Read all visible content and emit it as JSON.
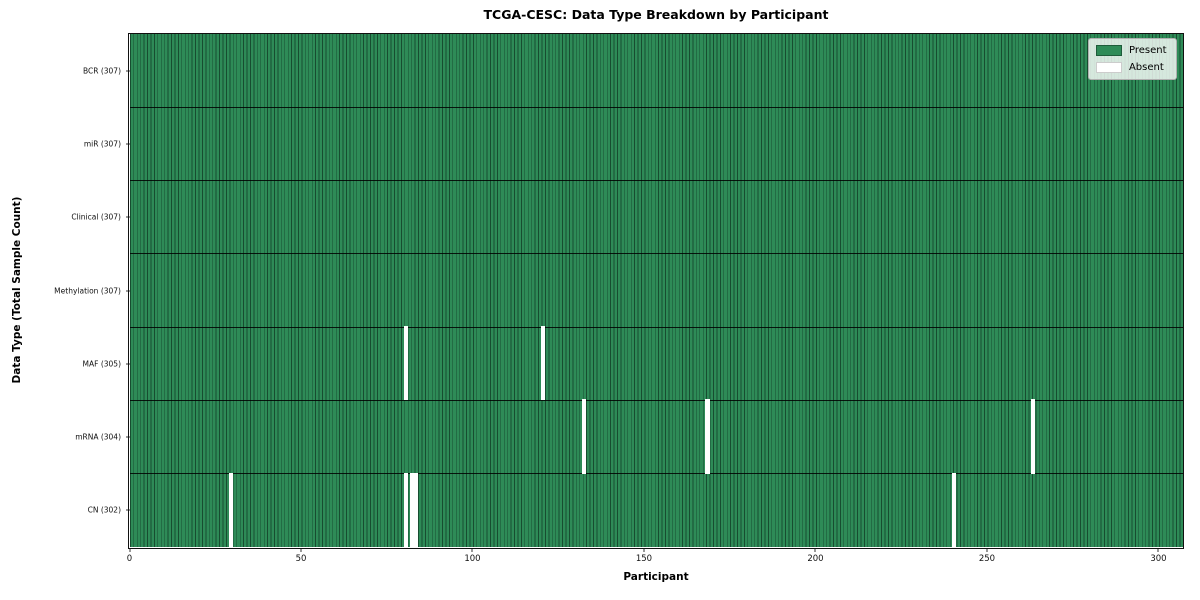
{
  "chart_data": {
    "type": "heatmap",
    "title": "TCGA-CESC: Data Type Breakdown by Participant",
    "xlabel": "Participant",
    "ylabel": "Data Type (Total Sample Count)",
    "n_participants": 307,
    "x_ticks": [
      0,
      50,
      100,
      150,
      200,
      250,
      300
    ],
    "x_range": [
      0,
      307
    ],
    "grid": false,
    "legend_position": "upper right",
    "rows": [
      {
        "label": "BCR (307)",
        "name": "bcr",
        "total": 307,
        "absent": []
      },
      {
        "label": "miR (307)",
        "name": "mir",
        "total": 307,
        "absent": []
      },
      {
        "label": "Clinical (307)",
        "name": "clinical",
        "total": 307,
        "absent": []
      },
      {
        "label": "Methylation (307)",
        "name": "methylation",
        "total": 307,
        "absent": []
      },
      {
        "label": "MAF (305)",
        "name": "maf",
        "total": 305,
        "absent": [
          80,
          120
        ]
      },
      {
        "label": "mRNA (304)",
        "name": "mrna",
        "total": 304,
        "absent": [
          132,
          168,
          263
        ]
      },
      {
        "label": "CN (302)",
        "name": "cn",
        "total": 302,
        "absent": [
          29,
          80,
          82,
          83,
          240
        ]
      }
    ],
    "legend": [
      {
        "label": "Present",
        "color": "#2e8b57",
        "edge": "#1e5c3a"
      },
      {
        "label": "Absent",
        "color": "#ffffff",
        "edge": "#cccccc"
      }
    ],
    "colors": {
      "present": "#2e8b57",
      "absent": "#ffffff",
      "cell_edge": "#0a2416",
      "spine": "#111111"
    }
  }
}
